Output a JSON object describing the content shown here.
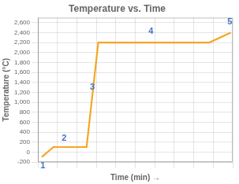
{
  "chart_data": {
    "type": "line",
    "title": "Temperature vs. Time",
    "xlabel": "Time (min) →",
    "ylabel": "Temperature (°C)",
    "x": [
      0.2,
      0.8,
      2.5,
      3.1,
      5.5,
      7.0,
      8.8,
      9.9
    ],
    "values": [
      -100,
      100,
      100,
      2200,
      2200,
      2200,
      2200,
      2400
    ],
    "color": "#F5A623",
    "xlim": [
      0,
      10
    ],
    "xticks": [
      0,
      1,
      2,
      3,
      4,
      5,
      6,
      7,
      8,
      9,
      10
    ],
    "ylim": [
      -200,
      2700
    ],
    "yticks": [
      -200,
      0,
      200,
      400,
      600,
      800,
      {
        "value": 1000,
        "label": "1,000"
      },
      {
        "value": 1200,
        "label": "1,200"
      },
      {
        "value": 1400,
        "label": "1,400"
      },
      {
        "value": 1600,
        "label": "1,600"
      },
      {
        "value": 1800,
        "label": "1,800"
      },
      {
        "value": 2000,
        "label": "2,000"
      },
      {
        "value": 2200,
        "label": "2,200"
      },
      {
        "value": 2400,
        "label": "2,400"
      },
      {
        "value": 2600,
        "label": "2,600"
      }
    ],
    "tick_labels": "y",
    "grid": true,
    "annotations": [
      {
        "text": "1",
        "x": 0.25,
        "y": -280,
        "color": "#4472C4"
      },
      {
        "text": "2",
        "x": 1.35,
        "y": 280,
        "color": "#4472C4"
      },
      {
        "text": "3",
        "x": 2.8,
        "y": 1300,
        "color": "#4472C4"
      },
      {
        "text": "4",
        "x": 5.8,
        "y": 2430,
        "color": "#4472C4"
      },
      {
        "text": "5",
        "x": 9.85,
        "y": 2610,
        "color": "#4472C4"
      }
    ]
  }
}
